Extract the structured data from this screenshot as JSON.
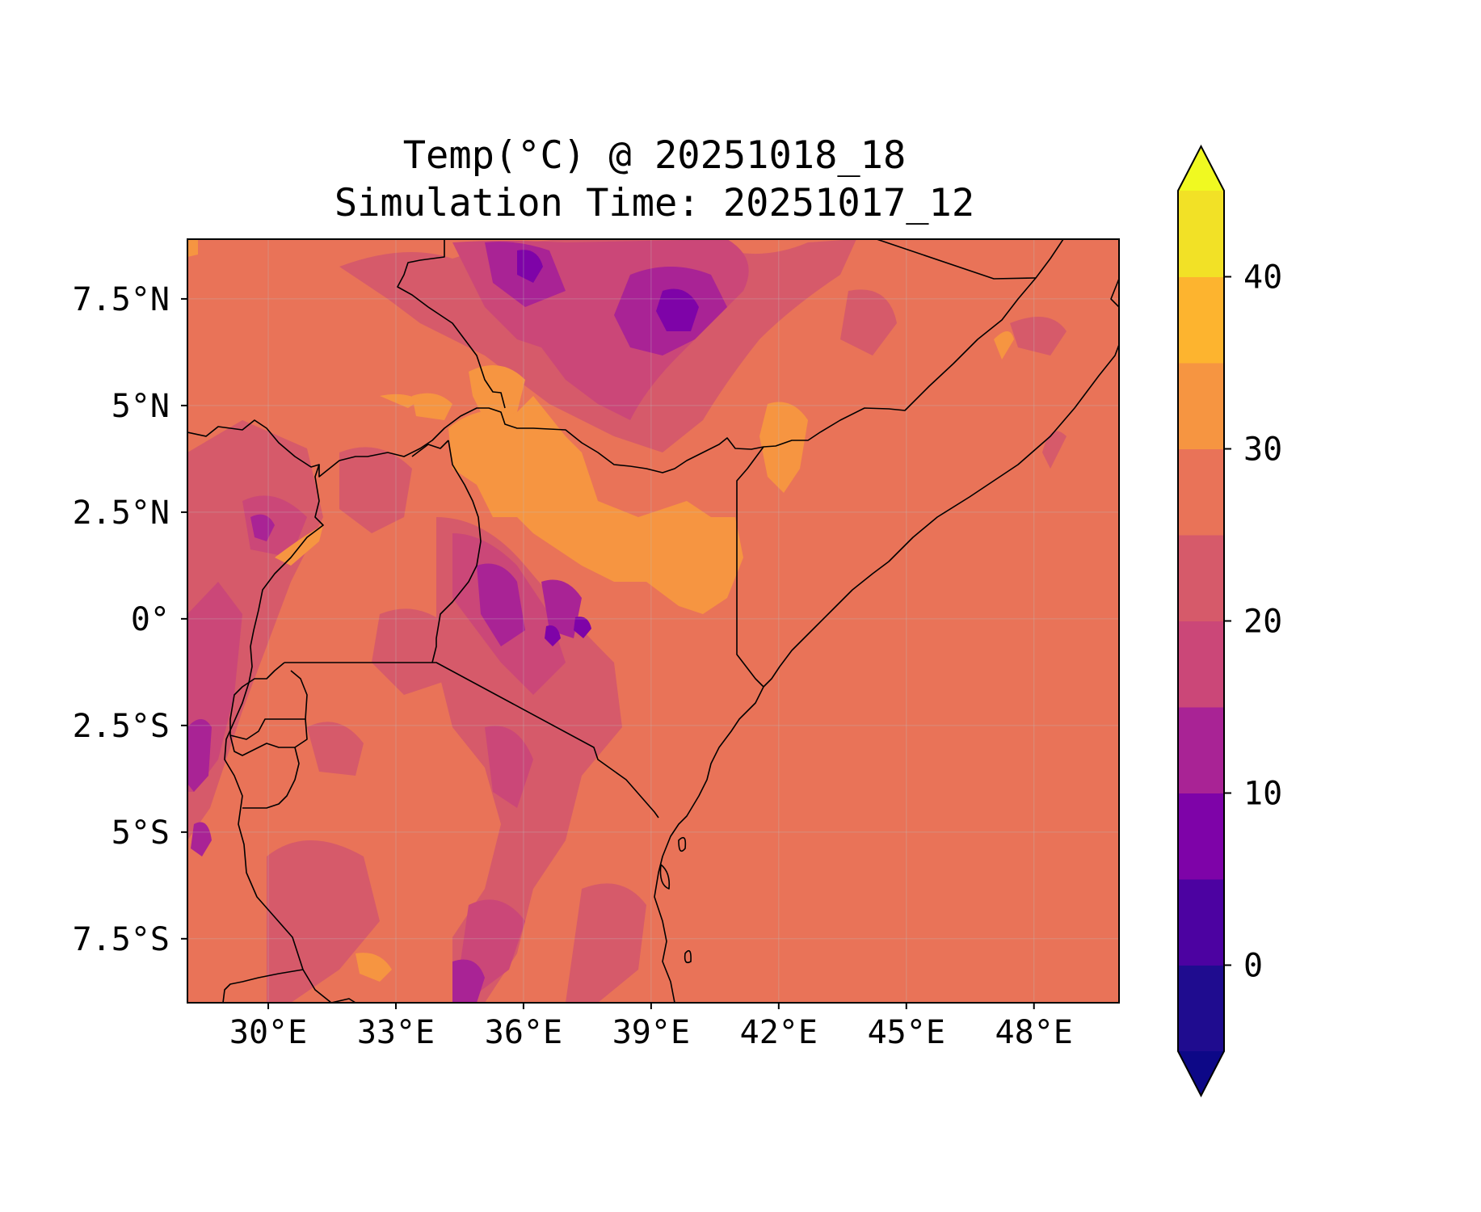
{
  "title": {
    "line1": "Temp(°C) @ 20251018_18",
    "line2": "Simulation Time: 20251017_12"
  },
  "map": {
    "extent": {
      "lon_min": 28.1,
      "lon_max": 50.0,
      "lat_min": -9.0,
      "lat_max": 8.9
    },
    "x_ticks": [
      {
        "lon": 30,
        "label": "30°E"
      },
      {
        "lon": 33,
        "label": "33°E"
      },
      {
        "lon": 36,
        "label": "36°E"
      },
      {
        "lon": 39,
        "label": "39°E"
      },
      {
        "lon": 42,
        "label": "42°E"
      },
      {
        "lon": 45,
        "label": "45°E"
      },
      {
        "lon": 48,
        "label": "48°E"
      }
    ],
    "y_ticks": [
      {
        "lat": 7.5,
        "label": "7.5°N"
      },
      {
        "lat": 5,
        "label": "5°N"
      },
      {
        "lat": 2.5,
        "label": "2.5°N"
      },
      {
        "lat": 0,
        "label": "0°"
      },
      {
        "lat": -2.5,
        "label": "2.5°S"
      },
      {
        "lat": -5,
        "label": "5°S"
      },
      {
        "lat": -7.5,
        "label": "7.5°S"
      }
    ],
    "gridlines": true,
    "background_level_color": "#e97358"
  },
  "colorbar": {
    "levels": [
      -5,
      0,
      5,
      10,
      15,
      20,
      25,
      30,
      35,
      40,
      45
    ],
    "colors": [
      "#1f0c8f",
      "#4c02a1",
      "#7e03a8",
      "#a92395",
      "#cb4778",
      "#d65a6a",
      "#e97358",
      "#f69541",
      "#fdb42f",
      "#f2e126"
    ],
    "under_color": "#0d0887",
    "over_color": "#f0f921",
    "ticks": [
      {
        "value": 0,
        "label": "0"
      },
      {
        "value": 10,
        "label": "10"
      },
      {
        "value": 20,
        "label": "20"
      },
      {
        "value": 30,
        "label": "30"
      },
      {
        "value": 40,
        "label": "40"
      }
    ],
    "extend": "both"
  }
}
